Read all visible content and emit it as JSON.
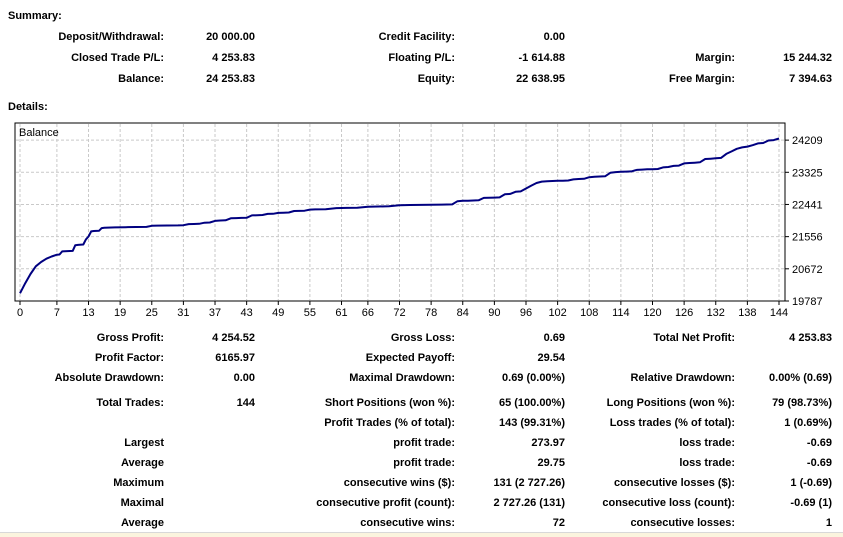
{
  "summary": {
    "title": "Summary:",
    "rows": [
      {
        "c1l": "Deposit/Withdrawal:",
        "c1v": "20 000.00",
        "c2l": "Credit Facility:",
        "c2v": "0.00",
        "c3l": "",
        "c3v": ""
      },
      {
        "c1l": "Closed Trade P/L:",
        "c1v": "4 253.83",
        "c2l": "Floating P/L:",
        "c2v": "-1 614.88",
        "c3l": "Margin:",
        "c3v": "15 244.32"
      },
      {
        "c1l": "Balance:",
        "c1v": "24 253.83",
        "c2l": "Equity:",
        "c2v": "22 638.95",
        "c3l": "Free Margin:",
        "c3v": "7 394.63"
      }
    ]
  },
  "details": {
    "title": "Details:",
    "rows": [
      {
        "c1l": "Gross Profit:",
        "c1v": "4 254.52",
        "c2l": "Gross Loss:",
        "c2v": "0.69",
        "c3l": "Total Net Profit:",
        "c3v": "4 253.83"
      },
      {
        "c1l": "Profit Factor:",
        "c1v": "6165.97",
        "c2l": "Expected Payoff:",
        "c2v": "29.54",
        "c3l": "",
        "c3v": ""
      },
      {
        "c1l": "Absolute Drawdown:",
        "c1v": "0.00",
        "c2l": "Maximal Drawdown:",
        "c2v": "0.69 (0.00%)",
        "c3l": "Relative Drawdown:",
        "c3v": "0.00% (0.69)"
      },
      {
        "c1l": "Total Trades:",
        "c1v": "144",
        "c2l": "Short Positions (won %):",
        "c2v": "65 (100.00%)",
        "c3l": "Long Positions (won %):",
        "c3v": "79 (98.73%)"
      },
      {
        "c1l": "",
        "c1v": "",
        "c2l": "Profit Trades (% of total):",
        "c2v": "143 (99.31%)",
        "c3l": "Loss trades (% of total):",
        "c3v": "1 (0.69%)"
      },
      {
        "c1l": "Largest",
        "c1v": "",
        "c2l": "profit trade:",
        "c2v": "273.97",
        "c3l": "loss trade:",
        "c3v": "-0.69"
      },
      {
        "c1l": "Average",
        "c1v": "",
        "c2l": "profit trade:",
        "c2v": "29.75",
        "c3l": "loss trade:",
        "c3v": "-0.69"
      },
      {
        "c1l": "Maximum",
        "c1v": "",
        "c2l": "consecutive wins ($):",
        "c2v": "131 (2 727.26)",
        "c3l": "consecutive losses ($):",
        "c3v": "1 (-0.69)"
      },
      {
        "c1l": "Maximal",
        "c1v": "",
        "c2l": "consecutive profit (count):",
        "c2v": "2 727.26 (131)",
        "c3l": "consecutive loss (count):",
        "c3v": "-0.69 (1)"
      },
      {
        "c1l": "Average",
        "c1v": "",
        "c2l": "consecutive wins:",
        "c2v": "72",
        "c3l": "consecutive losses:",
        "c3v": "1"
      }
    ]
  },
  "chart_data": {
    "type": "line",
    "title": "Balance",
    "xlabel": "",
    "ylabel": "",
    "xlim": [
      0,
      144
    ],
    "ylim": [
      19787,
      24680
    ],
    "x_ticks": [
      0,
      7,
      13,
      19,
      25,
      31,
      37,
      43,
      49,
      55,
      61,
      66,
      72,
      78,
      84,
      90,
      96,
      102,
      108,
      114,
      120,
      126,
      132,
      138,
      144
    ],
    "y_ticks": [
      19787,
      20672,
      21556,
      22441,
      23325,
      24209
    ],
    "grid": true,
    "legend_position": "top-left-inside",
    "series": [
      {
        "name": "Balance",
        "color": "#000080",
        "points": [
          [
            0,
            20000
          ],
          [
            1,
            20280
          ],
          [
            2,
            20530
          ],
          [
            3,
            20740
          ],
          [
            4,
            20860
          ],
          [
            5,
            20950
          ],
          [
            6,
            21010
          ],
          [
            7,
            21060
          ],
          [
            7.5,
            21065
          ],
          [
            8,
            21150
          ],
          [
            9,
            21160
          ],
          [
            10,
            21165
          ],
          [
            10.5,
            21320
          ],
          [
            11,
            21330
          ],
          [
            12,
            21340
          ],
          [
            12.5,
            21480
          ],
          [
            13,
            21560
          ],
          [
            13.5,
            21700
          ],
          [
            14,
            21710
          ],
          [
            15,
            21720
          ],
          [
            15.5,
            21790
          ],
          [
            16,
            21800
          ],
          [
            18,
            21810
          ],
          [
            20,
            21815
          ],
          [
            22,
            21820
          ],
          [
            24,
            21825
          ],
          [
            25,
            21855
          ],
          [
            26,
            21860
          ],
          [
            28,
            21862
          ],
          [
            30,
            21866
          ],
          [
            31,
            21870
          ],
          [
            32,
            21900
          ],
          [
            33,
            21905
          ],
          [
            34,
            21910
          ],
          [
            35,
            21940
          ],
          [
            36,
            21945
          ],
          [
            37,
            21990
          ],
          [
            38,
            22000
          ],
          [
            39,
            22005
          ],
          [
            40,
            22060
          ],
          [
            41,
            22065
          ],
          [
            42,
            22070
          ],
          [
            43,
            22075
          ],
          [
            44,
            22140
          ],
          [
            45,
            22145
          ],
          [
            46,
            22150
          ],
          [
            47,
            22180
          ],
          [
            48,
            22185
          ],
          [
            49,
            22210
          ],
          [
            50,
            22215
          ],
          [
            51,
            22220
          ],
          [
            52,
            22260
          ],
          [
            53,
            22265
          ],
          [
            54,
            22270
          ],
          [
            55,
            22300
          ],
          [
            56,
            22305
          ],
          [
            58,
            22310
          ],
          [
            60,
            22340
          ],
          [
            62,
            22345
          ],
          [
            64,
            22350
          ],
          [
            66,
            22380
          ],
          [
            68,
            22385
          ],
          [
            70,
            22390
          ],
          [
            72,
            22420
          ],
          [
            74,
            22425
          ],
          [
            76,
            22430
          ],
          [
            78,
            22432
          ],
          [
            80,
            22436
          ],
          [
            81,
            22440
          ],
          [
            82,
            22442
          ],
          [
            83,
            22530
          ],
          [
            84,
            22540
          ],
          [
            85,
            22545
          ],
          [
            86,
            22550
          ],
          [
            87,
            22556
          ],
          [
            88,
            22620
          ],
          [
            89,
            22626
          ],
          [
            90,
            22630
          ],
          [
            91,
            22636
          ],
          [
            92,
            22720
          ],
          [
            93,
            22730
          ],
          [
            94,
            22790
          ],
          [
            95,
            22800
          ],
          [
            96,
            22880
          ],
          [
            97,
            22960
          ],
          [
            98,
            23030
          ],
          [
            99,
            23070
          ],
          [
            100,
            23080
          ],
          [
            101,
            23085
          ],
          [
            102,
            23090
          ],
          [
            103,
            23095
          ],
          [
            104,
            23100
          ],
          [
            105,
            23130
          ],
          [
            106,
            23140
          ],
          [
            107,
            23146
          ],
          [
            108,
            23190
          ],
          [
            109,
            23200
          ],
          [
            110,
            23210
          ],
          [
            111,
            23216
          ],
          [
            112,
            23310
          ],
          [
            113,
            23330
          ],
          [
            114,
            23340
          ],
          [
            115,
            23345
          ],
          [
            116,
            23350
          ],
          [
            117,
            23390
          ],
          [
            118,
            23400
          ],
          [
            119,
            23406
          ],
          [
            120,
            23410
          ],
          [
            121,
            23416
          ],
          [
            122,
            23460
          ],
          [
            123,
            23470
          ],
          [
            124,
            23500
          ],
          [
            125,
            23510
          ],
          [
            126,
            23570
          ],
          [
            127,
            23580
          ],
          [
            128,
            23590
          ],
          [
            129,
            23600
          ],
          [
            130,
            23690
          ],
          [
            131,
            23700
          ],
          [
            132,
            23710
          ],
          [
            133,
            23720
          ],
          [
            134,
            23830
          ],
          [
            135,
            23900
          ],
          [
            136,
            23970
          ],
          [
            137,
            24010
          ],
          [
            138,
            24030
          ],
          [
            139,
            24070
          ],
          [
            140,
            24120
          ],
          [
            141,
            24130
          ],
          [
            142,
            24200
          ],
          [
            143,
            24210
          ],
          [
            144,
            24253.83
          ]
        ]
      }
    ]
  },
  "colors": {
    "line": "#000080",
    "grid": "#C9C9C9",
    "chart_border": "#000000",
    "footer_strip": "#FBF4DE",
    "footer_strip_border": "#D8D8D8"
  }
}
